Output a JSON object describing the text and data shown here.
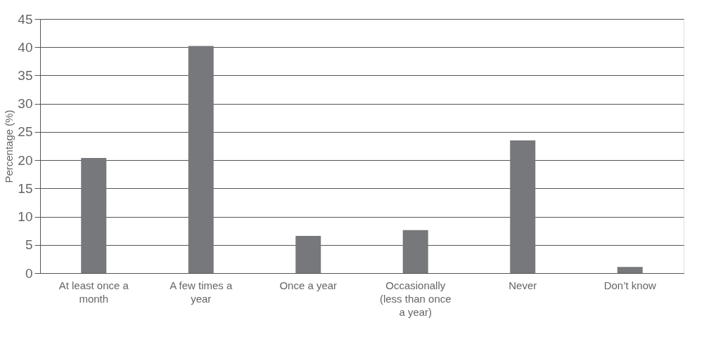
{
  "chart_data": {
    "type": "bar",
    "ylabel": "Percentage (%)",
    "categories": [
      "At least once a month",
      "A few times a year",
      "Once a year",
      "Occasionally (less than once a year)",
      "Never",
      "Don’t know"
    ],
    "values": [
      20.4,
      40.2,
      6.6,
      7.6,
      23.5,
      1.1
    ],
    "color": "#77787c",
    "ylim": [
      0,
      45
    ],
    "yticks": [
      0,
      5,
      10,
      15,
      20,
      25,
      30,
      35,
      40,
      45
    ],
    "grid": "y"
  }
}
